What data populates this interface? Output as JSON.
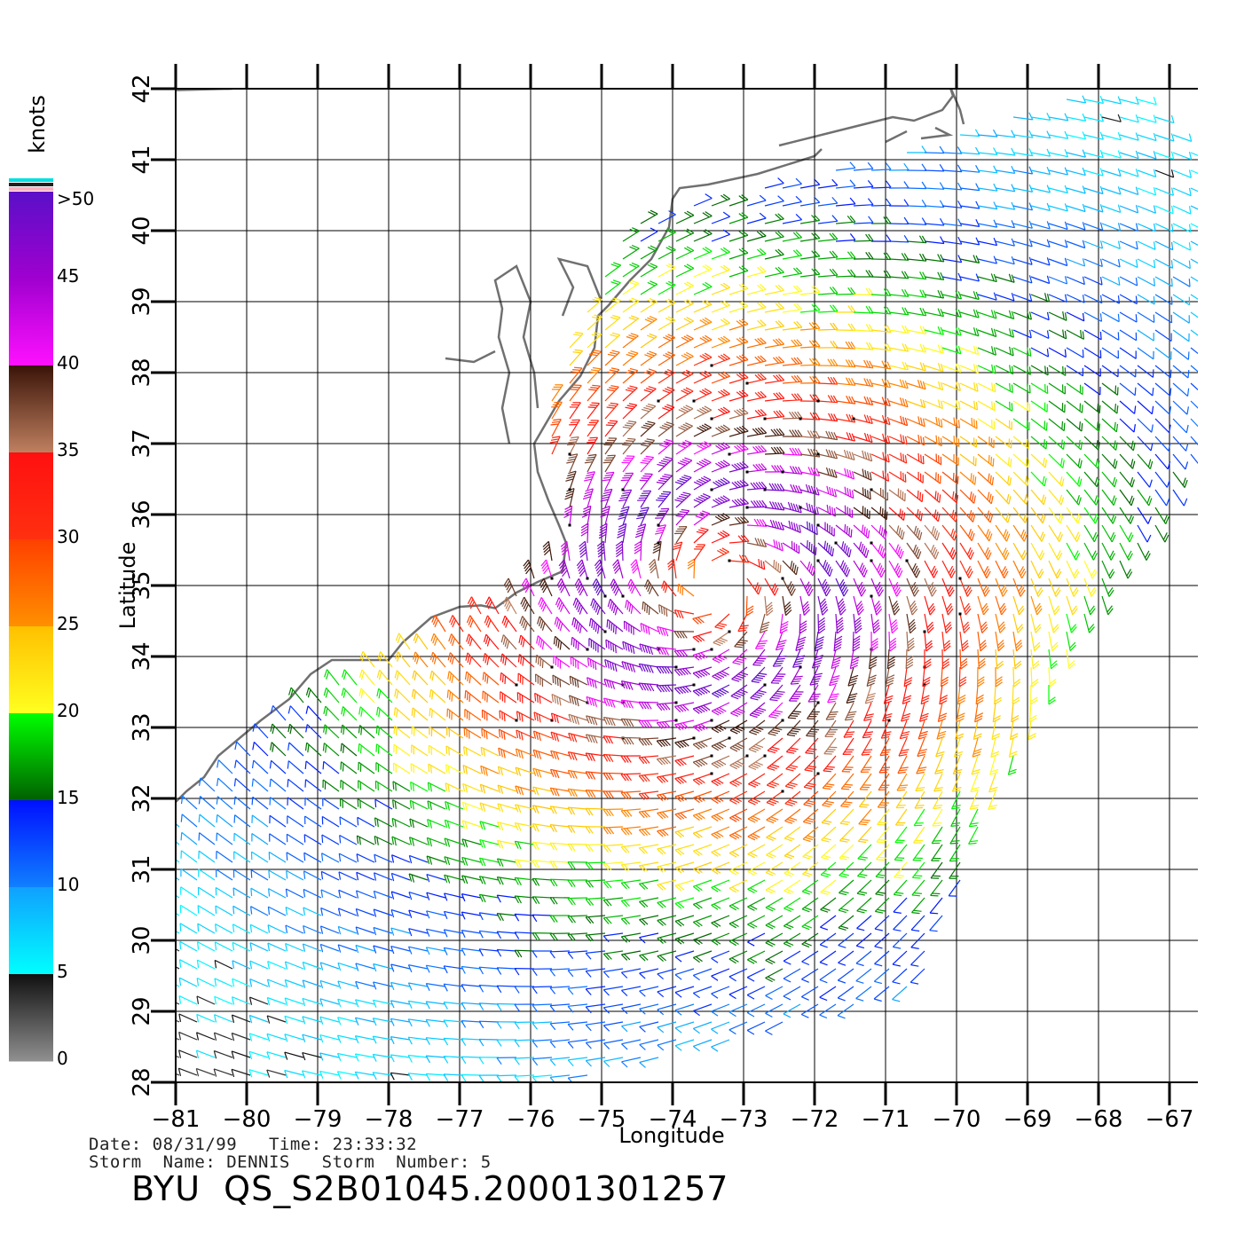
{
  "legend": {
    "units": "knots",
    "labels": [
      ">50",
      "45",
      "40",
      "35",
      "30",
      "25",
      "20",
      "15",
      "10",
      "5",
      "0"
    ],
    "bands": [
      {
        "from": 50,
        "to": 45,
        "top": "#5a10c8",
        "bottom": "#a000d0"
      },
      {
        "from": 45,
        "to": 40,
        "top": "#a000d0",
        "bottom": "#ff10ff"
      },
      {
        "from": 40,
        "to": 35,
        "top": "#3a1408",
        "bottom": "#c08060"
      },
      {
        "from": 35,
        "to": 30,
        "top": "#ff1010",
        "bottom": "#ff3010"
      },
      {
        "from": 30,
        "to": 25,
        "top": "#ff4000",
        "bottom": "#ff9000"
      },
      {
        "from": 25,
        "to": 20,
        "top": "#ffc000",
        "bottom": "#ffff20"
      },
      {
        "from": 20,
        "to": 15,
        "top": "#00ff00",
        "bottom": "#006000"
      },
      {
        "from": 15,
        "to": 10,
        "top": "#0010ff",
        "bottom": "#1080ff"
      },
      {
        "from": 10,
        "to": 5,
        "top": "#10a0ff",
        "bottom": "#00ffff"
      },
      {
        "from": 5,
        "to": 0,
        "top": "#101010",
        "bottom": "#909090"
      }
    ]
  },
  "axes": {
    "x_label": "Longitude",
    "y_label": "Latitude",
    "x_ticks": [
      "-81",
      "-80",
      "-79",
      "-78",
      "-77",
      "-76",
      "-75",
      "-74",
      "-73",
      "-72",
      "-71",
      "-70",
      "-69",
      "-68",
      "-67"
    ],
    "y_ticks": [
      "28",
      "29",
      "30",
      "31",
      "32",
      "33",
      "34",
      "35",
      "36",
      "37",
      "38",
      "39",
      "40",
      "41",
      "42"
    ],
    "lon_range": [
      -81,
      -66.6
    ],
    "lat_range": [
      28,
      42
    ]
  },
  "storm": {
    "center_lon": -73.4,
    "center_lat": 35.0,
    "date_line": "Date: 08/31/99   Time: 23:33:32",
    "name_line": "Storm  Name: DENNIS   Storm  Number: 5"
  },
  "product_id": "BYU  QS_S2B01045.20001301257",
  "colors": {
    "grid": "#000000",
    "coast": "#707070"
  }
}
